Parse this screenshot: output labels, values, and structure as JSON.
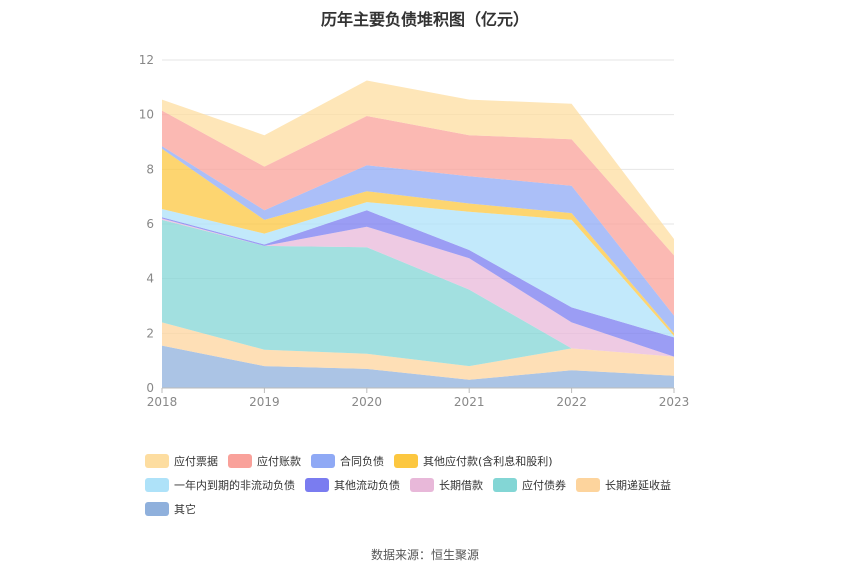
{
  "title": "历年主要负债堆积图（亿元）",
  "source": "数据来源：恒生聚源",
  "colors": [
    "#fddda0",
    "#f9a19a",
    "#8fa9f5",
    "#fcc740",
    "#aee2f9",
    "#7a7cf0",
    "#e8b8d9",
    "#83d6d5",
    "#fdd49d",
    "#8fb0dc"
  ],
  "legend_rows": [
    [
      0,
      1,
      2,
      3
    ],
    [
      4,
      5,
      6,
      7,
      8
    ],
    [
      9
    ]
  ],
  "chart_data": {
    "type": "area",
    "stacked": true,
    "title": "历年主要负债堆积图（亿元）",
    "x": [
      "2018",
      "2019",
      "2020",
      "2021",
      "2022",
      "2023"
    ],
    "y_ticks": [
      "0",
      "2",
      "4",
      "6",
      "8",
      "10",
      "12"
    ],
    "ylim": [
      0,
      12
    ],
    "grid": true,
    "legend_position": "bottom",
    "series_bottom_up": [
      {
        "name": "其它",
        "values": [
          1.55,
          0.8,
          0.7,
          0.3,
          0.65,
          0.45
        ]
      },
      {
        "name": "长期递延收益",
        "values": [
          0.85,
          0.6,
          0.55,
          0.5,
          0.8,
          0.7
        ]
      },
      {
        "name": "应付债券",
        "values": [
          3.75,
          3.8,
          3.9,
          2.8,
          0,
          0
        ]
      },
      {
        "name": "长期借款",
        "values": [
          0.05,
          0,
          0.75,
          1.15,
          0.95,
          0
        ]
      },
      {
        "name": "其他流动负债",
        "values": [
          0.05,
          0.05,
          0.6,
          0.3,
          0.55,
          0.7
        ]
      },
      {
        "name": "一年内到期的非流动负债",
        "values": [
          0.3,
          0.4,
          0.3,
          1.4,
          3.2,
          0.05
        ]
      },
      {
        "name": "其他应付款(含利息和股利)",
        "values": [
          2.2,
          0.5,
          0.4,
          0.3,
          0.25,
          0.1
        ]
      },
      {
        "name": "合同负债",
        "values": [
          0.1,
          0.35,
          0.95,
          1.0,
          1.0,
          0.65
        ]
      },
      {
        "name": "应付账款",
        "values": [
          1.3,
          1.6,
          1.8,
          1.5,
          1.7,
          2.2
        ]
      },
      {
        "name": "应付票据",
        "values": [
          0.4,
          1.15,
          1.3,
          1.3,
          1.3,
          0.6
        ]
      }
    ]
  }
}
